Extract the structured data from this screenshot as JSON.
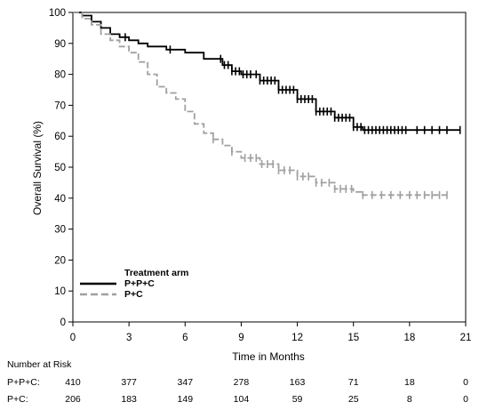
{
  "chart_data": {
    "type": "line",
    "title": "",
    "xlabel": "Time in Months",
    "ylabel": "Overall Survival (%)",
    "xlim": [
      0,
      21
    ],
    "ylim": [
      0,
      100
    ],
    "xticks": [
      "0",
      "3",
      "6",
      "9",
      "12",
      "15",
      "18",
      "21"
    ],
    "yticks": [
      "0",
      "10",
      "20",
      "30",
      "40",
      "50",
      "60",
      "70",
      "80",
      "90",
      "100"
    ],
    "legend_title": "Treatment arm",
    "legend_position": "bottom-left",
    "grid": false,
    "series": [
      {
        "name": "P+P+C",
        "color": "#000000",
        "style": "solid",
        "points": [
          [
            0,
            100
          ],
          [
            0.5,
            99
          ],
          [
            1,
            97
          ],
          [
            1.5,
            95
          ],
          [
            2,
            93
          ],
          [
            2.5,
            92
          ],
          [
            3,
            91
          ],
          [
            3.5,
            90
          ],
          [
            4,
            89
          ],
          [
            5,
            88
          ],
          [
            6,
            87
          ],
          [
            7,
            85
          ],
          [
            8,
            83
          ],
          [
            8.5,
            81
          ],
          [
            9,
            80
          ],
          [
            10,
            78
          ],
          [
            11,
            75
          ],
          [
            12,
            72
          ],
          [
            13,
            68
          ],
          [
            14,
            66
          ],
          [
            15,
            63
          ],
          [
            15.5,
            62
          ],
          [
            16,
            62
          ],
          [
            17,
            62
          ],
          [
            18,
            62
          ],
          [
            19,
            62
          ],
          [
            20,
            62
          ],
          [
            20.7,
            62
          ]
        ],
        "censor_x": [
          2.8,
          5.2,
          7.9,
          8.1,
          8.3,
          8.5,
          8.7,
          8.9,
          9.1,
          9.3,
          9.5,
          9.8,
          10.0,
          10.2,
          10.4,
          10.6,
          10.8,
          11.0,
          11.2,
          11.4,
          11.6,
          11.8,
          12.0,
          12.2,
          12.4,
          12.6,
          12.8,
          13.0,
          13.2,
          13.4,
          13.6,
          13.8,
          14.0,
          14.2,
          14.4,
          14.6,
          14.8,
          15.0,
          15.2,
          15.4,
          15.6,
          15.8,
          16.0,
          16.2,
          16.4,
          16.6,
          16.8,
          17.0,
          17.2,
          17.4,
          17.6,
          17.8,
          18.4,
          18.8,
          19.2,
          19.6,
          20.0,
          20.7
        ]
      },
      {
        "name": "P+C",
        "color": "#a0a0a0",
        "style": "dashed",
        "points": [
          [
            0,
            100
          ],
          [
            0.5,
            98
          ],
          [
            1,
            96
          ],
          [
            1.5,
            93
          ],
          [
            2,
            91
          ],
          [
            2.5,
            89
          ],
          [
            3,
            87
          ],
          [
            3.5,
            84
          ],
          [
            4,
            80
          ],
          [
            4.5,
            76
          ],
          [
            5,
            74
          ],
          [
            5.5,
            72
          ],
          [
            6,
            68
          ],
          [
            6.5,
            64
          ],
          [
            7,
            61
          ],
          [
            7.5,
            59
          ],
          [
            8,
            57
          ],
          [
            8.5,
            55
          ],
          [
            9,
            53
          ],
          [
            10,
            51
          ],
          [
            11,
            49
          ],
          [
            12,
            47
          ],
          [
            13,
            45
          ],
          [
            14,
            43
          ],
          [
            15,
            42
          ],
          [
            15.5,
            41
          ],
          [
            16,
            41
          ],
          [
            17,
            41
          ],
          [
            18,
            41
          ],
          [
            19,
            41
          ],
          [
            20,
            41
          ]
        ],
        "censor_x": [
          7.5,
          8.5,
          9.2,
          9.5,
          9.8,
          10.1,
          10.4,
          10.7,
          11.0,
          11.3,
          11.6,
          12.0,
          12.3,
          12.6,
          13.0,
          13.3,
          13.7,
          14.0,
          14.3,
          14.6,
          14.9,
          15.5,
          16.0,
          16.5,
          17.0,
          17.5,
          18.0,
          18.4,
          18.8,
          19.2,
          19.6,
          20.0
        ]
      }
    ],
    "risk_table": {
      "header": "Number at Risk",
      "times": [
        0,
        3,
        6,
        9,
        12,
        15,
        18,
        21
      ],
      "rows": [
        {
          "label": "P+P+C:",
          "values": [
            "410",
            "377",
            "347",
            "278",
            "163",
            "71",
            "18",
            "0"
          ]
        },
        {
          "label": "P+C:",
          "values": [
            "206",
            "183",
            "149",
            "104",
            "59",
            "25",
            "8",
            "0"
          ]
        }
      ]
    }
  }
}
